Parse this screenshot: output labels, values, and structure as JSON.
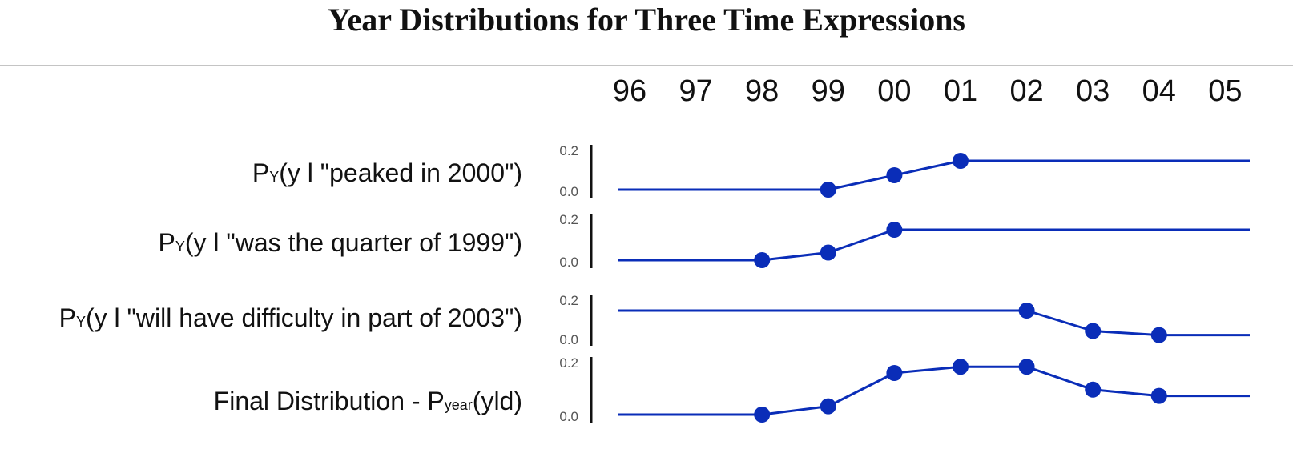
{
  "title": "Year Distributions for Three Time Expressions",
  "chart_data": {
    "type": "line",
    "title": "Year Distributions for Three Time Expressions",
    "x": [
      "96",
      "97",
      "98",
      "99",
      "00",
      "01",
      "02",
      "03",
      "04",
      "05"
    ],
    "ylim": [
      0,
      0.2
    ],
    "yticks": [
      "0.2",
      "0.0"
    ],
    "grid": false,
    "color": "#0a2db8",
    "rows": [
      {
        "label": {
          "pre": "P",
          "sub": "Y",
          "post": "(y l \"peaked in 2000\")"
        },
        "values": [
          0,
          0,
          0,
          0,
          0.1,
          0.2,
          0.2,
          0.2,
          0.2,
          0.2
        ],
        "markers": [
          "99",
          "00",
          "01"
        ]
      },
      {
        "label": {
          "pre": "P",
          "sub": "Y",
          "post": "(y l \"was the quarter of 1999\")"
        },
        "values": [
          0,
          0,
          0,
          0.05,
          0.2,
          0.2,
          0.2,
          0.2,
          0.2,
          0.2
        ],
        "markers": [
          "98",
          "99",
          "00"
        ]
      },
      {
        "label": {
          "pre": "P",
          "sub": "Y",
          "post": "(y l \"will have difficulty in part of 2003\")"
        },
        "values": [
          0.2,
          0.2,
          0.2,
          0.2,
          0.2,
          0.2,
          0.2,
          0.05,
          0.02,
          0.02
        ],
        "markers": [
          "02",
          "03",
          "04"
        ]
      },
      {
        "label": {
          "pre": "Final Distribution  -  P",
          "sub": "year",
          "post": "(yld)"
        },
        "values": [
          0,
          0,
          0,
          0.04,
          0.2,
          0.23,
          0.23,
          0.12,
          0.09,
          0.09
        ],
        "markers": [
          "98",
          "99",
          "00",
          "01",
          "02",
          "03",
          "04"
        ]
      }
    ]
  }
}
